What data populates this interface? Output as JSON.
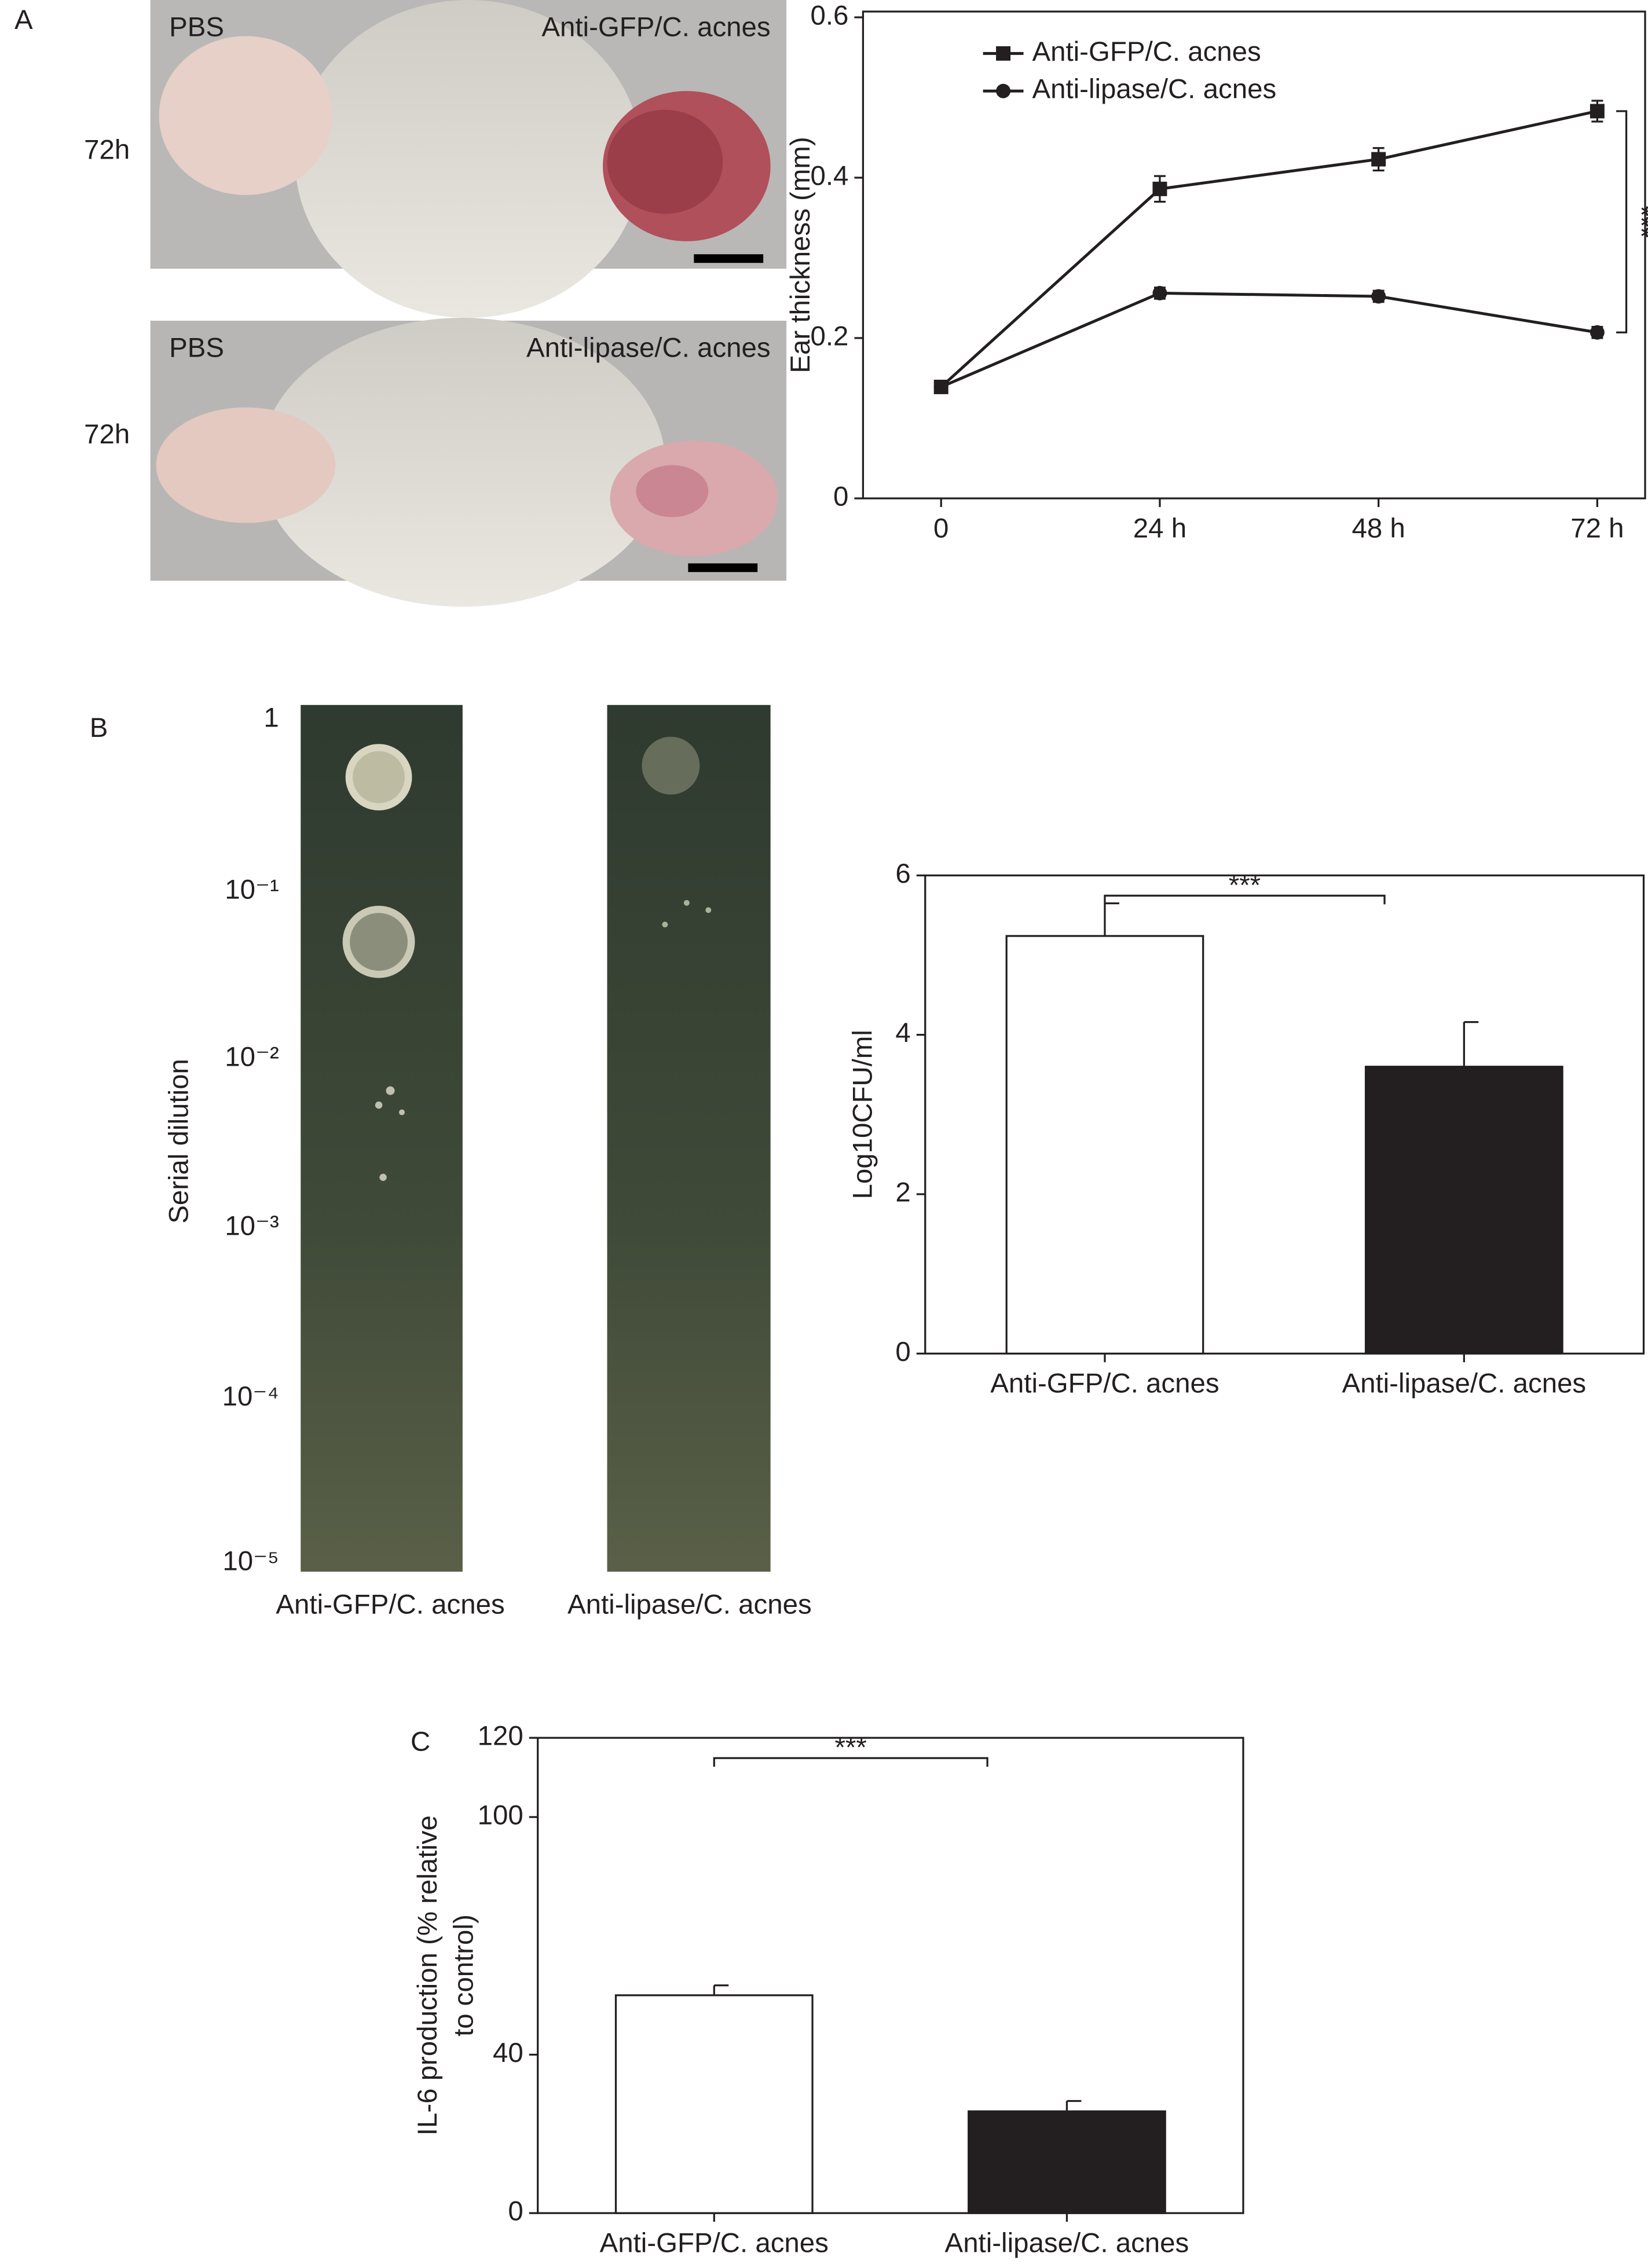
{
  "panel_labels": [
    "A",
    "B",
    "C"
  ],
  "photos": [
    {
      "left": "PBS",
      "right": "Anti-GFP/C. acnes",
      "time": "72h"
    },
    {
      "left": "PBS",
      "right": "Anti-lipase/C. acnes",
      "time": "72h"
    }
  ],
  "plates": {
    "ylabel": "Serial dilution",
    "dilutions": [
      "1",
      "10⁻¹",
      "10⁻²",
      "10⁻³",
      "10⁻⁴",
      "10⁻⁵"
    ],
    "labels": [
      "Anti-GFP/C. acnes",
      "Anti-lipase/C. acnes"
    ]
  },
  "chart_data": [
    {
      "type": "line",
      "ylabel": "Ear thickness (mm)",
      "categories": [
        "0",
        "24 h",
        "48 h",
        "72 h"
      ],
      "series": [
        {
          "name": "Anti-GFP/C. acnes",
          "color": "#231f20",
          "marker": "square",
          "values": [
            0.139,
            0.386,
            0.423,
            0.483
          ],
          "errors": [
            0.005,
            0.016,
            0.014,
            0.013
          ]
        },
        {
          "name": "Anti-lipase/C. acnes",
          "color": "#231f20",
          "marker": "circle",
          "values": [
            0.139,
            0.256,
            0.252,
            0.207
          ],
          "errors": [
            0.005,
            0.007,
            0.007,
            0.007
          ]
        }
      ],
      "ylim": [
        0,
        0.6
      ],
      "yticks": [
        0,
        0.2,
        0.4,
        0.6
      ],
      "annotation": "***"
    },
    {
      "type": "bar",
      "ylabel": "Log10CFU/ml",
      "categories": [
        "Anti-GFP/C. acnes",
        "Anti-lipase/C. acnes"
      ],
      "values": [
        5.24,
        3.6
      ],
      "errors": [
        0.41,
        0.56
      ],
      "colors": [
        "#ffffff",
        "#231f20"
      ],
      "ylim": [
        0,
        6
      ],
      "yticks": [
        0,
        2,
        4,
        6
      ],
      "annotation": "***"
    },
    {
      "type": "bar",
      "ylabel": [
        "IL-6 production (% relative",
        "to control)"
      ],
      "categories": [
        "Anti-GFP/C. acnes",
        "Anti-lipase/C. acnes"
      ],
      "values": [
        55,
        25.7
      ],
      "errors": [
        2.5,
        2.6
      ],
      "colors": [
        "#ffffff",
        "#231f20"
      ],
      "ylim": [
        0,
        120
      ],
      "yticks": [
        0,
        40,
        100,
        120
      ],
      "annotation": "***"
    }
  ]
}
